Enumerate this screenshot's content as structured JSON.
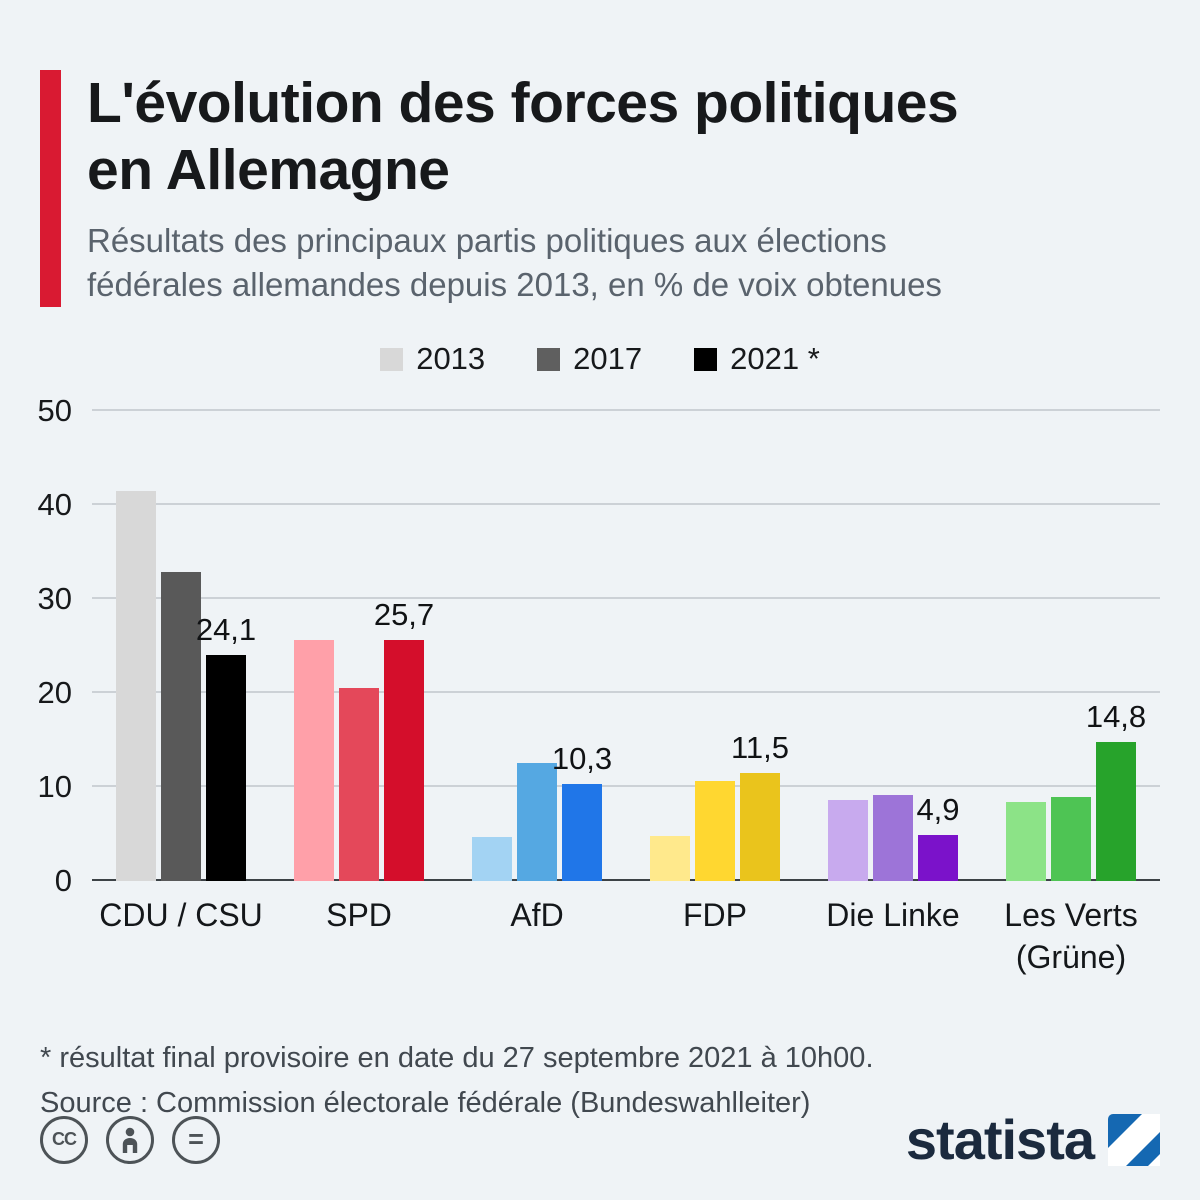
{
  "header": {
    "accent_color": "#d91a32",
    "title_lines": [
      "L'évolution des forces politiques",
      "en Allemagne"
    ],
    "subtitle_lines": [
      "Résultats des principaux partis politiques aux élections",
      "fédérales allemandes depuis 2013, en % de voix obtenues"
    ]
  },
  "legend": {
    "items": [
      {
        "label": "2013",
        "color": "#d8d8d8"
      },
      {
        "label": "2017",
        "color": "#5f5f5f"
      },
      {
        "label": "2021 *",
        "color": "#000000"
      }
    ]
  },
  "chart_data": {
    "type": "bar",
    "categories": [
      "CDU / CSU",
      "SPD",
      "AfD",
      "FDP",
      "Die Linke",
      "Les Verts\n(Grüne)"
    ],
    "series": [
      {
        "name": "2013",
        "values": [
          41.5,
          25.7,
          4.7,
          4.8,
          8.6,
          8.4
        ]
      },
      {
        "name": "2017",
        "values": [
          32.9,
          20.5,
          12.6,
          10.7,
          9.2,
          8.9
        ]
      },
      {
        "name": "2021 *",
        "values": [
          24.1,
          25.7,
          10.3,
          11.5,
          4.9,
          14.8
        ]
      }
    ],
    "bar_colors": [
      [
        "#d8d8d8",
        "#595959",
        "#000000"
      ],
      [
        "#ffa0a9",
        "#e4485a",
        "#d40e2b"
      ],
      [
        "#a3d3f3",
        "#55a8e2",
        "#2076e8"
      ],
      [
        "#ffe98c",
        "#ffd730",
        "#eac41c"
      ],
      [
        "#c8aaee",
        "#9d74d8",
        "#7b12ca"
      ],
      [
        "#8ce387",
        "#4ec454",
        "#27a32b"
      ]
    ],
    "value_labels": {
      "series": "2021 *",
      "labels": [
        "24,1",
        "25,7",
        "10,3",
        "11,5",
        "4,9",
        "14,8"
      ]
    },
    "ylim": [
      0,
      50
    ],
    "yticks": [
      50,
      40,
      30,
      20,
      10,
      0
    ],
    "grid": true,
    "legend_position": "top",
    "title": "",
    "xlabel": "",
    "ylabel": ""
  },
  "footnotes": {
    "line1": "* résultat final provisoire en date du 27 septembre 2021 à 10h00.",
    "line2": "Source : Commission électorale fédérale (Bundeswahlleiter)"
  },
  "footer_icons": {
    "cc": "CC",
    "nd": "="
  },
  "branding": {
    "logo_text": "statista",
    "logo_text_color": "#1b2a3e",
    "logo_square_color": "#1568b2"
  }
}
